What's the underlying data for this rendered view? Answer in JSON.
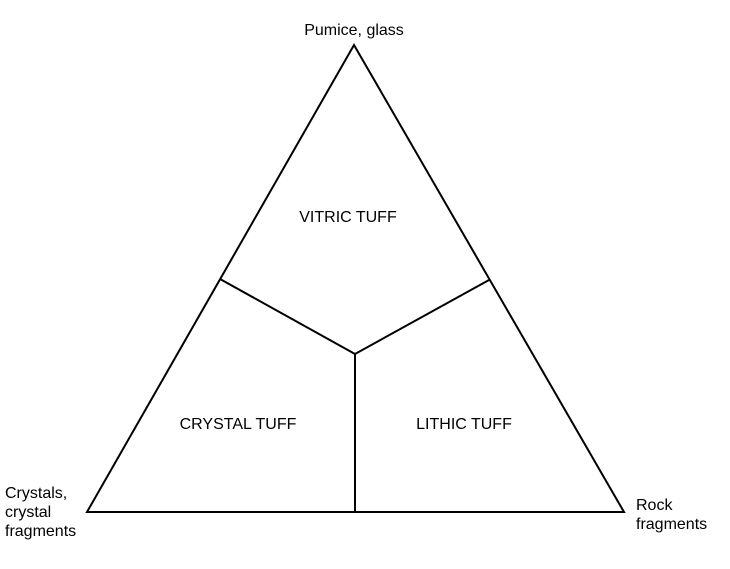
{
  "diagram": {
    "vertices": {
      "top": "Pumice, glass",
      "left": [
        "Crystals,",
        "crystal",
        "fragments"
      ],
      "right": [
        "Rock",
        "fragments"
      ]
    },
    "fields": {
      "vitric": "VITRIC TUFF",
      "crystal": "CRYSTAL TUFF",
      "lithic": "LITHIC TUFF"
    },
    "line_color": "#000000"
  }
}
